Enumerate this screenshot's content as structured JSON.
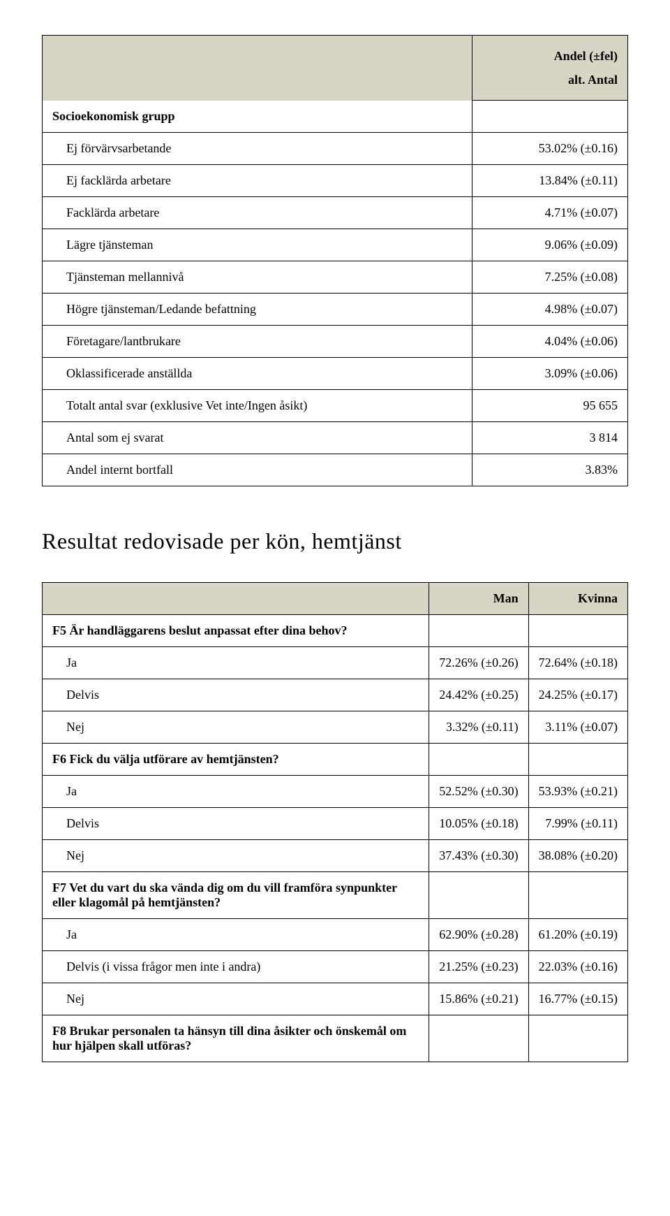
{
  "table1": {
    "header_empty_bg": "#d8d5c4",
    "header_lines": [
      "Andel (±fel)",
      "alt. Antal"
    ],
    "group_label": "Socioekonomisk grupp",
    "rows": [
      {
        "label": "Ej förvärvsarbetande",
        "value": "53.02% (±0.16)"
      },
      {
        "label": "Ej facklärda arbetare",
        "value": "13.84% (±0.11)"
      },
      {
        "label": "Facklärda arbetare",
        "value": "4.71% (±0.07)"
      },
      {
        "label": "Lägre tjänsteman",
        "value": "9.06% (±0.09)"
      },
      {
        "label": "Tjänsteman mellannivå",
        "value": "7.25% (±0.08)"
      },
      {
        "label": "Högre tjänsteman/Ledande befattning",
        "value": "4.98% (±0.07)"
      },
      {
        "label": "Företagare/lantbrukare",
        "value": "4.04% (±0.06)"
      },
      {
        "label": "Oklassificerade anställda",
        "value": "3.09% (±0.06)"
      },
      {
        "label": "Totalt antal svar (exklusive Vet inte/Ingen åsikt)",
        "value": "95 655"
      },
      {
        "label": "Antal som ej svarat",
        "value": "3 814"
      },
      {
        "label": "Andel internt bortfall",
        "value": "3.83%"
      }
    ]
  },
  "section_title": "Resultat redovisade per kön, hemtjänst",
  "table2": {
    "col_headers": {
      "man": "Man",
      "kvinna": "Kvinna"
    },
    "rows": [
      {
        "type": "q",
        "label": "F5 Är handläggarens beslut anpassat efter dina behov?"
      },
      {
        "type": "a",
        "label": "Ja",
        "man": "72.26% (±0.26)",
        "kvinna": "72.64% (±0.18)"
      },
      {
        "type": "a",
        "label": "Delvis",
        "man": "24.42% (±0.25)",
        "kvinna": "24.25% (±0.17)"
      },
      {
        "type": "a",
        "label": "Nej",
        "man": "3.32% (±0.11)",
        "kvinna": "3.11% (±0.07)"
      },
      {
        "type": "q",
        "label": "F6 Fick du välja utförare av hemtjänsten?"
      },
      {
        "type": "a",
        "label": "Ja",
        "man": "52.52% (±0.30)",
        "kvinna": "53.93% (±0.21)"
      },
      {
        "type": "a",
        "label": "Delvis",
        "man": "10.05% (±0.18)",
        "kvinna": "7.99% (±0.11)"
      },
      {
        "type": "a",
        "label": "Nej",
        "man": "37.43% (±0.30)",
        "kvinna": "38.08% (±0.20)"
      },
      {
        "type": "q",
        "label": "F7 Vet du vart du ska vända dig om du vill framföra synpunkter eller klagomål på hemtjänsten?"
      },
      {
        "type": "a",
        "label": "Ja",
        "man": "62.90% (±0.28)",
        "kvinna": "61.20% (±0.19)"
      },
      {
        "type": "a",
        "label": "Delvis (i vissa frågor men inte i andra)",
        "man": "21.25% (±0.23)",
        "kvinna": "22.03% (±0.16)"
      },
      {
        "type": "a",
        "label": "Nej",
        "man": "15.86% (±0.21)",
        "kvinna": "16.77% (±0.15)"
      },
      {
        "type": "q",
        "label": "F8 Brukar personalen ta hänsyn till dina åsikter och önskemål om hur hjälpen skall utföras?"
      }
    ]
  },
  "styling": {
    "header_bg": "#d8d5c4",
    "border_color": "#000000",
    "font_family": "Georgia, serif",
    "body_bg": "#ffffff",
    "base_font_size": 18,
    "title_font_size": 32
  }
}
